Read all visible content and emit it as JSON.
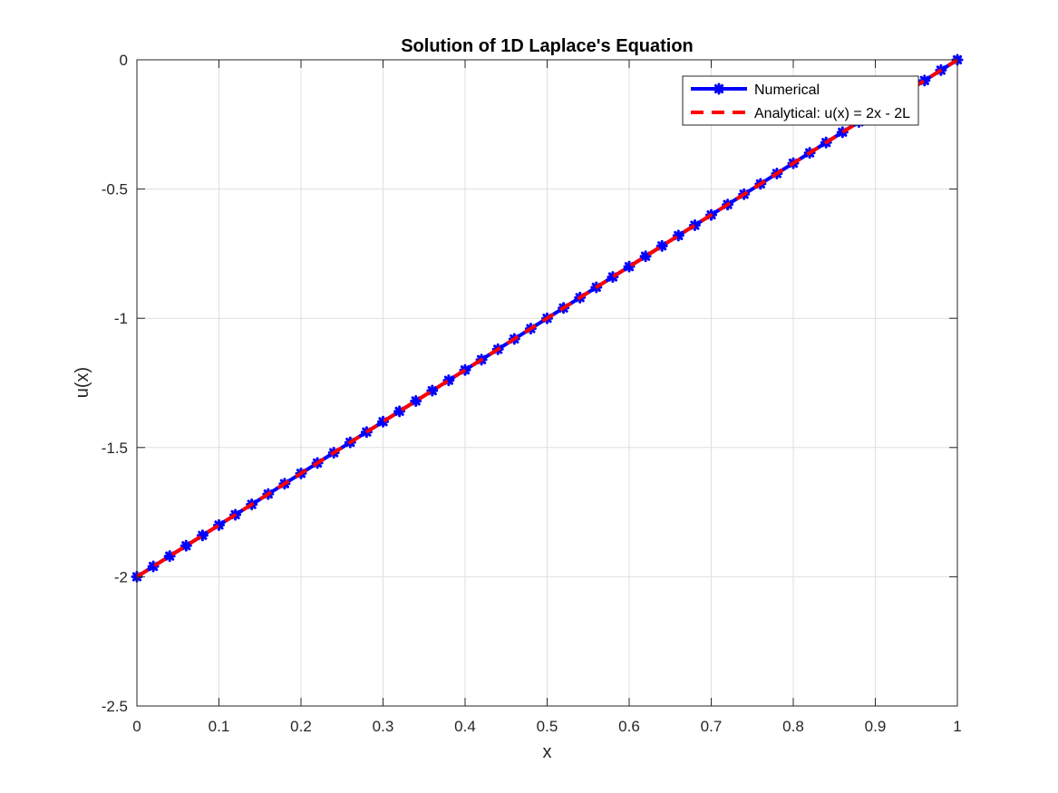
{
  "chart_data": {
    "type": "line",
    "title": "Solution of 1D Laplace's Equation",
    "xlabel": "x",
    "ylabel": "u(x)",
    "xlim": [
      0,
      1
    ],
    "ylim": [
      -2.5,
      0
    ],
    "xticks": [
      0,
      0.1,
      0.2,
      0.3,
      0.4,
      0.5,
      0.6,
      0.7,
      0.8,
      0.9,
      1
    ],
    "xtick_labels": [
      "0",
      "0.1",
      "0.2",
      "0.3",
      "0.4",
      "0.5",
      "0.6",
      "0.7",
      "0.8",
      "0.9",
      "1"
    ],
    "yticks": [
      -2.5,
      -2,
      -1.5,
      -1,
      -0.5,
      0
    ],
    "ytick_labels": [
      "-2.5",
      "-2",
      "-1.5",
      "-1",
      "-0.5",
      "0"
    ],
    "grid": true,
    "legend_position": "top-right",
    "series": [
      {
        "name": "Numerical",
        "color": "#0000ff",
        "style": "solid",
        "marker": "star",
        "x": [
          0,
          0.02,
          0.04,
          0.06,
          0.08,
          0.1,
          0.12,
          0.14,
          0.16,
          0.18,
          0.2,
          0.22,
          0.24,
          0.26,
          0.28,
          0.3,
          0.32,
          0.34,
          0.36,
          0.38,
          0.4,
          0.42,
          0.44,
          0.46,
          0.48,
          0.5,
          0.52,
          0.54,
          0.56,
          0.58,
          0.6,
          0.62,
          0.64,
          0.66,
          0.68,
          0.7,
          0.72,
          0.74,
          0.76,
          0.78,
          0.8,
          0.82,
          0.84,
          0.86,
          0.88,
          0.9,
          0.92,
          0.94,
          0.96,
          0.98,
          1
        ],
        "y": [
          -2,
          -1.96,
          -1.92,
          -1.88,
          -1.84,
          -1.8,
          -1.76,
          -1.72,
          -1.68,
          -1.64,
          -1.6,
          -1.56,
          -1.52,
          -1.48,
          -1.44,
          -1.4,
          -1.36,
          -1.32,
          -1.28,
          -1.24,
          -1.2,
          -1.16,
          -1.12,
          -1.08,
          -1.04,
          -1,
          -0.96,
          -0.92,
          -0.88,
          -0.84,
          -0.8,
          -0.76,
          -0.72,
          -0.68,
          -0.64,
          -0.6,
          -0.56,
          -0.52,
          -0.48,
          -0.44,
          -0.4,
          -0.36,
          -0.32,
          -0.28,
          -0.24,
          -0.2,
          -0.16,
          -0.12,
          -0.08,
          -0.04,
          0
        ]
      },
      {
        "name": "Analytical: u(x) = 2x - 2L",
        "color": "#ff0000",
        "style": "dashed",
        "x": [
          0,
          1
        ],
        "y": [
          -2,
          0
        ]
      }
    ]
  }
}
